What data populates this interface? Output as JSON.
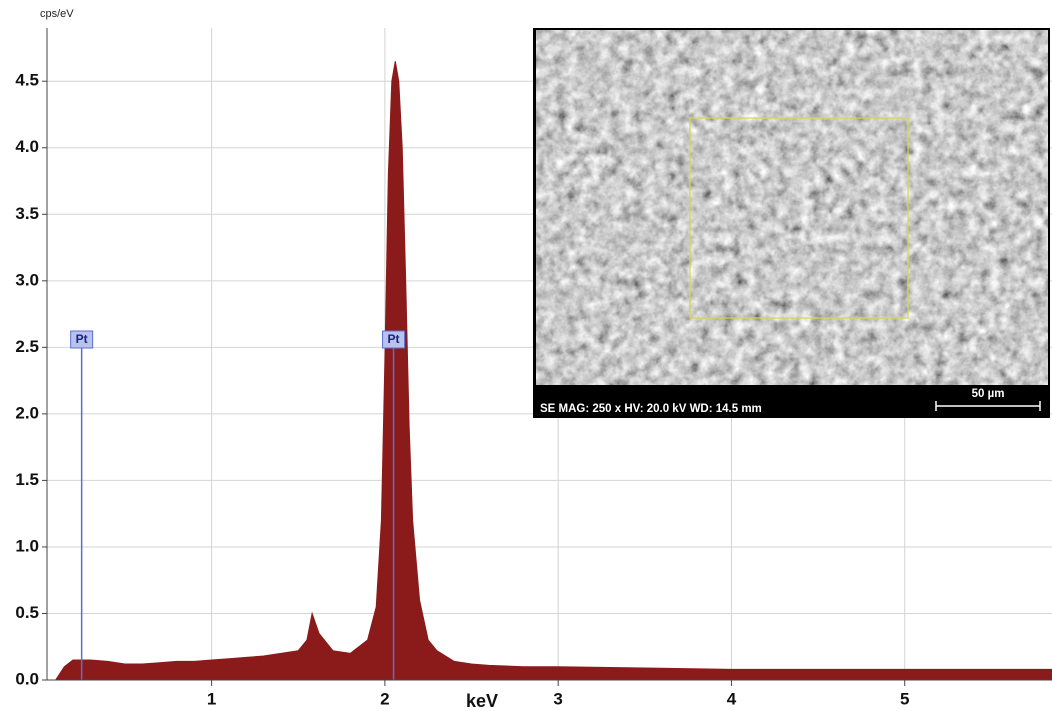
{
  "chart_data": {
    "type": "area",
    "ylabel": "cps/eV",
    "xlabel": "keV",
    "x": [
      0.1,
      0.15,
      0.2,
      0.3,
      0.4,
      0.5,
      0.6,
      0.7,
      0.8,
      0.9,
      1.0,
      1.1,
      1.2,
      1.3,
      1.4,
      1.5,
      1.55,
      1.58,
      1.62,
      1.7,
      1.8,
      1.9,
      1.95,
      1.98,
      2.0,
      2.02,
      2.04,
      2.06,
      2.08,
      2.1,
      2.12,
      2.14,
      2.16,
      2.2,
      2.25,
      2.3,
      2.4,
      2.5,
      2.6,
      2.8,
      3.0,
      3.5,
      4.0,
      4.5,
      5.0,
      5.5,
      5.85
    ],
    "values": [
      0.0,
      0.1,
      0.15,
      0.15,
      0.14,
      0.12,
      0.12,
      0.13,
      0.14,
      0.14,
      0.15,
      0.16,
      0.17,
      0.18,
      0.2,
      0.22,
      0.3,
      0.5,
      0.35,
      0.22,
      0.2,
      0.3,
      0.55,
      1.2,
      2.4,
      3.8,
      4.5,
      4.65,
      4.5,
      4.0,
      3.0,
      1.9,
      1.2,
      0.6,
      0.3,
      0.22,
      0.14,
      0.12,
      0.11,
      0.1,
      0.1,
      0.09,
      0.08,
      0.08,
      0.08,
      0.08,
      0.08
    ],
    "color": "#8b1a1a",
    "xlim": [
      0.05,
      5.85
    ],
    "ylim": [
      0,
      4.9
    ],
    "xticks": [
      1,
      2,
      3,
      4,
      5
    ],
    "yticks": [
      {
        "value": 0,
        "label": "0.0"
      },
      0.5,
      {
        "value": 1,
        "label": "1.0"
      },
      1.5,
      {
        "value": 2,
        "label": "2.0"
      },
      2.5,
      {
        "value": 3,
        "label": "3.0"
      },
      3.5,
      {
        "value": 4,
        "label": "4.0"
      },
      4.5
    ],
    "grid": true,
    "markers": [
      {
        "label": "Pt",
        "x": 0.25
      },
      {
        "label": "Pt",
        "x": 2.05
      }
    ],
    "marker_color": "#5b6fd0",
    "inset": {
      "info": "SE  MAG: 250 x  HV: 20.0 kV  WD: 14.5 mm",
      "scale": "50 µm"
    }
  }
}
